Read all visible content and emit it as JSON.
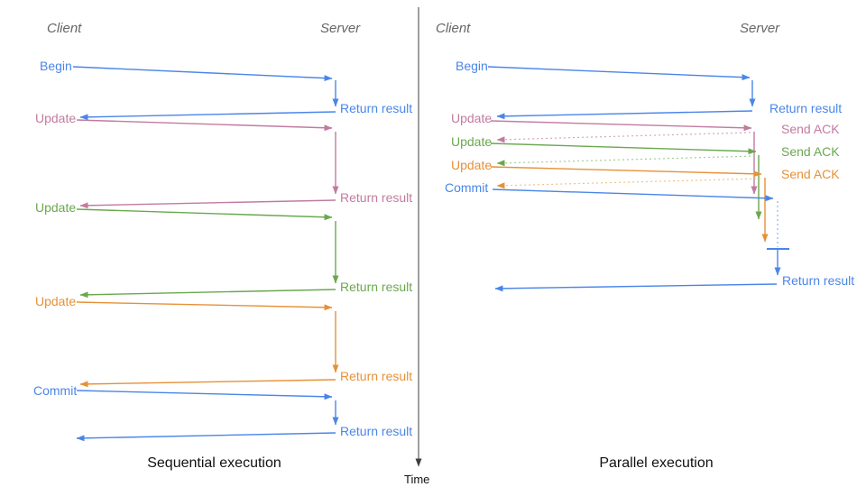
{
  "colors": {
    "blue": "#4a86e8",
    "pink": "#c27ba0",
    "green": "#6aa84f",
    "orange": "#e69138",
    "blue_light": "#8fb2ed",
    "pink_light": "#d5a6bd",
    "green_light": "#a6cb92",
    "orange_light": "#f3c186",
    "header_gray": "#666666",
    "black": "#111111",
    "divider": "#3d3d3d"
  },
  "diagram": {
    "sequential": {
      "client_header": "Client",
      "server_header": "Server",
      "title": "Sequential execution",
      "rows": [
        {
          "request": "Begin",
          "response": "Return result"
        },
        {
          "request": "Update",
          "response": "Return result"
        },
        {
          "request": "Update",
          "response": "Return result"
        },
        {
          "request": "Update",
          "response": "Return result"
        },
        {
          "request": "Commit",
          "response": "Return result"
        }
      ]
    },
    "parallel": {
      "client_header": "Client",
      "server_header": "Server",
      "title": "Parallel execution",
      "rows": [
        {
          "request": "Begin",
          "response": "Return result"
        },
        {
          "request": "Update",
          "response": "Send ACK"
        },
        {
          "request": "Update",
          "response": "Send ACK"
        },
        {
          "request": "Update",
          "response": "Send ACK"
        },
        {
          "request": "Commit",
          "response": "Return result"
        }
      ]
    },
    "time_axis_label": "Time",
    "arrows": [
      {
        "name": "time-axis-line",
        "stroke": "divider",
        "head": "divider",
        "width": 1,
        "points": [
          [
            464,
            8
          ],
          [
            464,
            517
          ]
        ]
      },
      {
        "name": "seq-begin-request",
        "stroke": "blue",
        "head": "blue",
        "width": 1.4,
        "points": [
          [
            81,
            74
          ],
          [
            368,
            87
          ]
        ]
      },
      {
        "name": "seq-begin-processing",
        "stroke": "blue",
        "head": "blue",
        "width": 1.4,
        "points": [
          [
            372,
            89
          ],
          [
            372,
            118
          ]
        ]
      },
      {
        "name": "seq-begin-return",
        "stroke": "blue",
        "head": "blue",
        "width": 1.4,
        "points": [
          [
            372,
            124
          ],
          [
            89,
            130
          ]
        ]
      },
      {
        "name": "seq-update1-request",
        "stroke": "pink",
        "head": "pink",
        "width": 1.4,
        "points": [
          [
            85,
            133
          ],
          [
            368,
            142
          ]
        ]
      },
      {
        "name": "seq-update1-processing",
        "stroke": "pink",
        "head": "pink",
        "width": 1.4,
        "points": [
          [
            372,
            146
          ],
          [
            372,
            215
          ]
        ]
      },
      {
        "name": "seq-update1-return",
        "stroke": "pink",
        "head": "pink",
        "width": 1.4,
        "points": [
          [
            372,
            222
          ],
          [
            89,
            228
          ]
        ]
      },
      {
        "name": "seq-update2-request",
        "stroke": "green",
        "head": "green",
        "width": 1.4,
        "points": [
          [
            85,
            232
          ],
          [
            368,
            241
          ]
        ]
      },
      {
        "name": "seq-update2-processing",
        "stroke": "green",
        "head": "green",
        "width": 1.4,
        "points": [
          [
            372,
            245
          ],
          [
            372,
            314
          ]
        ]
      },
      {
        "name": "seq-update2-return",
        "stroke": "green",
        "head": "green",
        "width": 1.4,
        "points": [
          [
            372,
            321
          ],
          [
            89,
            327
          ]
        ]
      },
      {
        "name": "seq-update3-request",
        "stroke": "orange",
        "head": "orange",
        "width": 1.4,
        "points": [
          [
            85,
            335
          ],
          [
            368,
            341
          ]
        ]
      },
      {
        "name": "seq-update3-processing",
        "stroke": "orange",
        "head": "orange",
        "width": 1.4,
        "points": [
          [
            372,
            345
          ],
          [
            372,
            413
          ]
        ]
      },
      {
        "name": "seq-update3-return",
        "stroke": "orange",
        "head": "orange",
        "width": 1.4,
        "points": [
          [
            372,
            421
          ],
          [
            89,
            426
          ]
        ]
      },
      {
        "name": "seq-commit-request",
        "stroke": "blue",
        "head": "blue",
        "width": 1.4,
        "points": [
          [
            85,
            433
          ],
          [
            368,
            440
          ]
        ]
      },
      {
        "name": "seq-commit-processing",
        "stroke": "blue",
        "head": "blue",
        "width": 1.4,
        "points": [
          [
            372,
            444
          ],
          [
            372,
            471
          ]
        ]
      },
      {
        "name": "seq-commit-return",
        "stroke": "blue",
        "head": "blue",
        "width": 1.4,
        "points": [
          [
            372,
            480
          ],
          [
            85,
            486
          ]
        ]
      },
      {
        "name": "par-begin-request",
        "stroke": "blue",
        "head": "blue",
        "width": 1.4,
        "points": [
          [
            541,
            74
          ],
          [
            831,
            86
          ]
        ]
      },
      {
        "name": "par-begin-processing",
        "stroke": "blue",
        "head": "blue",
        "width": 1.4,
        "points": [
          [
            834,
            89
          ],
          [
            834,
            118
          ]
        ]
      },
      {
        "name": "par-begin-return",
        "stroke": "blue",
        "head": "blue",
        "width": 1.4,
        "points": [
          [
            834,
            123
          ],
          [
            551,
            129
          ]
        ]
      },
      {
        "name": "par-update1-request",
        "stroke": "pink",
        "head": "pink",
        "width": 1.4,
        "points": [
          [
            544,
            134
          ],
          [
            833,
            142
          ]
        ]
      },
      {
        "name": "par-update1-queue",
        "stroke": "pink",
        "head": "pink",
        "width": 1.4,
        "points": [
          [
            836,
            146
          ],
          [
            836,
            215
          ]
        ]
      },
      {
        "name": "par-update1-ack",
        "stroke": "pink_light",
        "head": "pink",
        "width": 1.2,
        "dash": "2,3",
        "points": [
          [
            832,
            147
          ],
          [
            551,
            155
          ]
        ]
      },
      {
        "name": "par-update2-request",
        "stroke": "green",
        "head": "green",
        "width": 1.4,
        "points": [
          [
            544,
            159
          ],
          [
            838,
            168
          ]
        ]
      },
      {
        "name": "par-update2-queue",
        "stroke": "green",
        "head": "green",
        "width": 1.4,
        "points": [
          [
            841,
            172
          ],
          [
            841,
            243
          ]
        ]
      },
      {
        "name": "par-update2-ack",
        "stroke": "green_light",
        "head": "green",
        "width": 1.2,
        "dash": "2,3",
        "points": [
          [
            837,
            173
          ],
          [
            551,
            181
          ]
        ]
      },
      {
        "name": "par-update3-request",
        "stroke": "orange",
        "head": "orange",
        "width": 1.4,
        "points": [
          [
            544,
            185
          ],
          [
            844,
            193
          ]
        ]
      },
      {
        "name": "par-update3-queue",
        "stroke": "orange",
        "head": "orange",
        "width": 1.4,
        "points": [
          [
            848,
            197
          ],
          [
            848,
            268
          ]
        ]
      },
      {
        "name": "par-update3-ack",
        "stroke": "orange_light",
        "head": "orange",
        "width": 1.2,
        "dash": "2,3",
        "points": [
          [
            843,
            198
          ],
          [
            551,
            206
          ]
        ]
      },
      {
        "name": "par-commit-request",
        "stroke": "blue",
        "head": "blue",
        "width": 1.4,
        "points": [
          [
            546,
            210
          ],
          [
            857,
            220
          ]
        ]
      },
      {
        "name": "par-commit-wait",
        "stroke": "blue_light",
        "head": null,
        "width": 1.2,
        "dash": "2,3",
        "points": [
          [
            862,
            223
          ],
          [
            862,
            274
          ]
        ]
      },
      {
        "name": "par-sync-bar",
        "stroke": "blue",
        "head": null,
        "width": 2,
        "points": [
          [
            850,
            276
          ],
          [
            875,
            276
          ]
        ]
      },
      {
        "name": "par-final-processing",
        "stroke": "blue",
        "head": "blue",
        "width": 1.4,
        "points": [
          [
            862,
            277
          ],
          [
            862,
            305
          ]
        ]
      },
      {
        "name": "par-final-return",
        "stroke": "blue",
        "head": "blue",
        "width": 1.4,
        "points": [
          [
            861,
            315
          ],
          [
            549,
            320
          ]
        ]
      }
    ]
  }
}
